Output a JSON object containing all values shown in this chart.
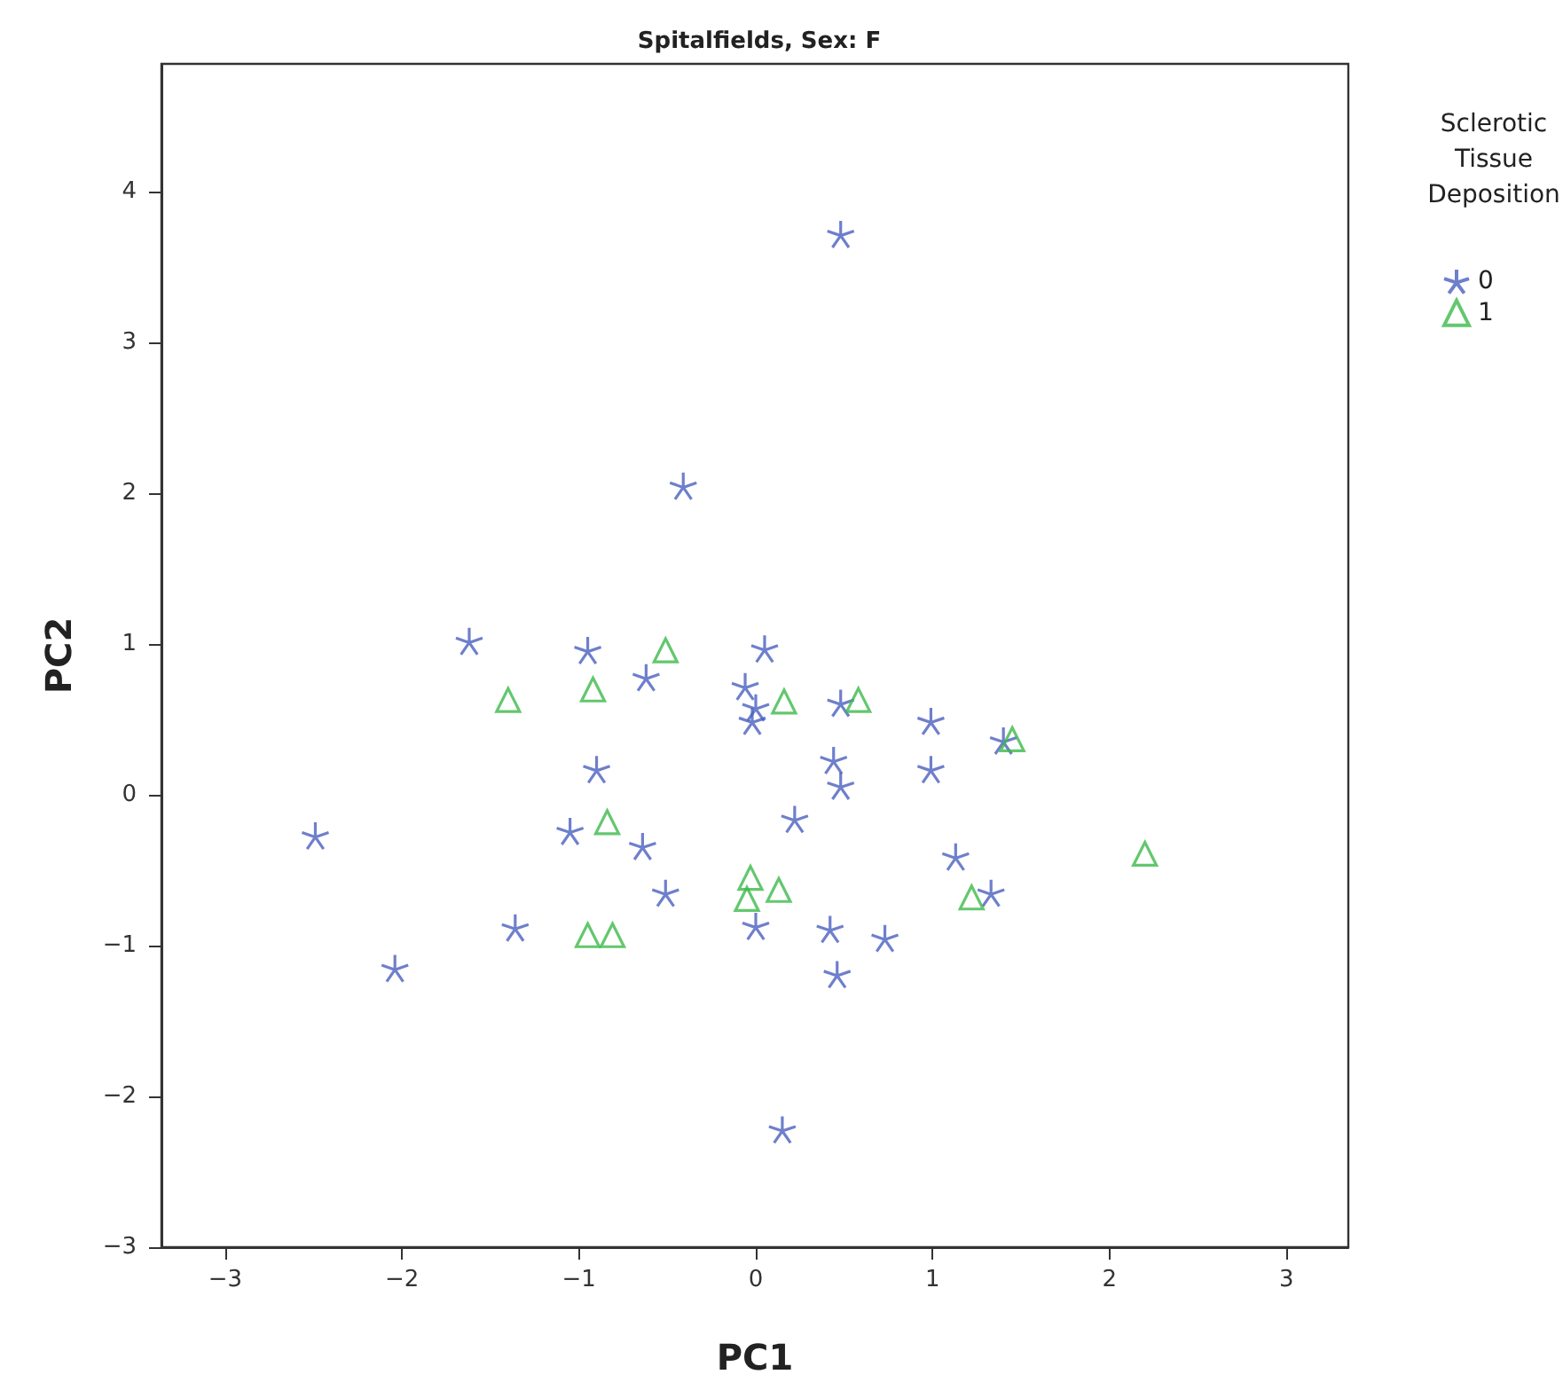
{
  "chart_data": {
    "type": "scatter",
    "title": "Spitalfields, Sex: F",
    "xlabel": "PC1",
    "ylabel": "PC2",
    "legend_title": "Sclerotic\nTissue\nDeposition",
    "legend": "right",
    "grid": false,
    "xlim": [
      -3.36,
      3.35
    ],
    "xticks": [
      -3,
      -2,
      -1,
      0,
      1,
      2,
      3
    ],
    "ylim": [
      -3,
      4.85
    ],
    "yticks": [
      -3,
      -2,
      -1,
      0,
      1,
      2,
      3,
      4
    ],
    "series": [
      {
        "name": "0",
        "color": "#4a5fbf",
        "marker": "cross",
        "x": [
          0.48,
          -0.41,
          -1.62,
          -0.95,
          0.05,
          -0.62,
          -0.06,
          0,
          -0.02,
          0.48,
          0.99,
          0.44,
          0.99,
          1.4,
          -0.9,
          0.48,
          0.22,
          -2.49,
          -1.05,
          -0.64,
          1.13,
          -0.51,
          1.33,
          -1.36,
          0,
          0.42,
          0.73,
          0.46,
          -2.04,
          0.15
        ],
        "values": [
          3.72,
          2.05,
          1.02,
          0.96,
          0.97,
          0.78,
          0.72,
          0.58,
          0.49,
          0.61,
          0.49,
          0.23,
          0.17,
          0.36,
          0.17,
          0.06,
          -0.16,
          -0.27,
          -0.24,
          -0.34,
          -0.41,
          -0.65,
          -0.65,
          -0.88,
          -0.87,
          -0.89,
          -0.95,
          -1.19,
          -1.15,
          -2.22
        ]
      },
      {
        "name": "1",
        "color": "#3cb94a",
        "marker": "triangle",
        "x": [
          -1.4,
          -0.92,
          -0.51,
          0.16,
          0.58,
          1.45,
          -0.84,
          -0.03,
          -0.05,
          0.13,
          1.22,
          2.2,
          -0.95,
          -0.81
        ],
        "values": [
          0.63,
          0.7,
          0.96,
          0.62,
          0.63,
          0.37,
          -0.18,
          -0.55,
          -0.69,
          -0.63,
          -0.68,
          -0.39,
          -0.93,
          -0.93
        ]
      }
    ]
  }
}
